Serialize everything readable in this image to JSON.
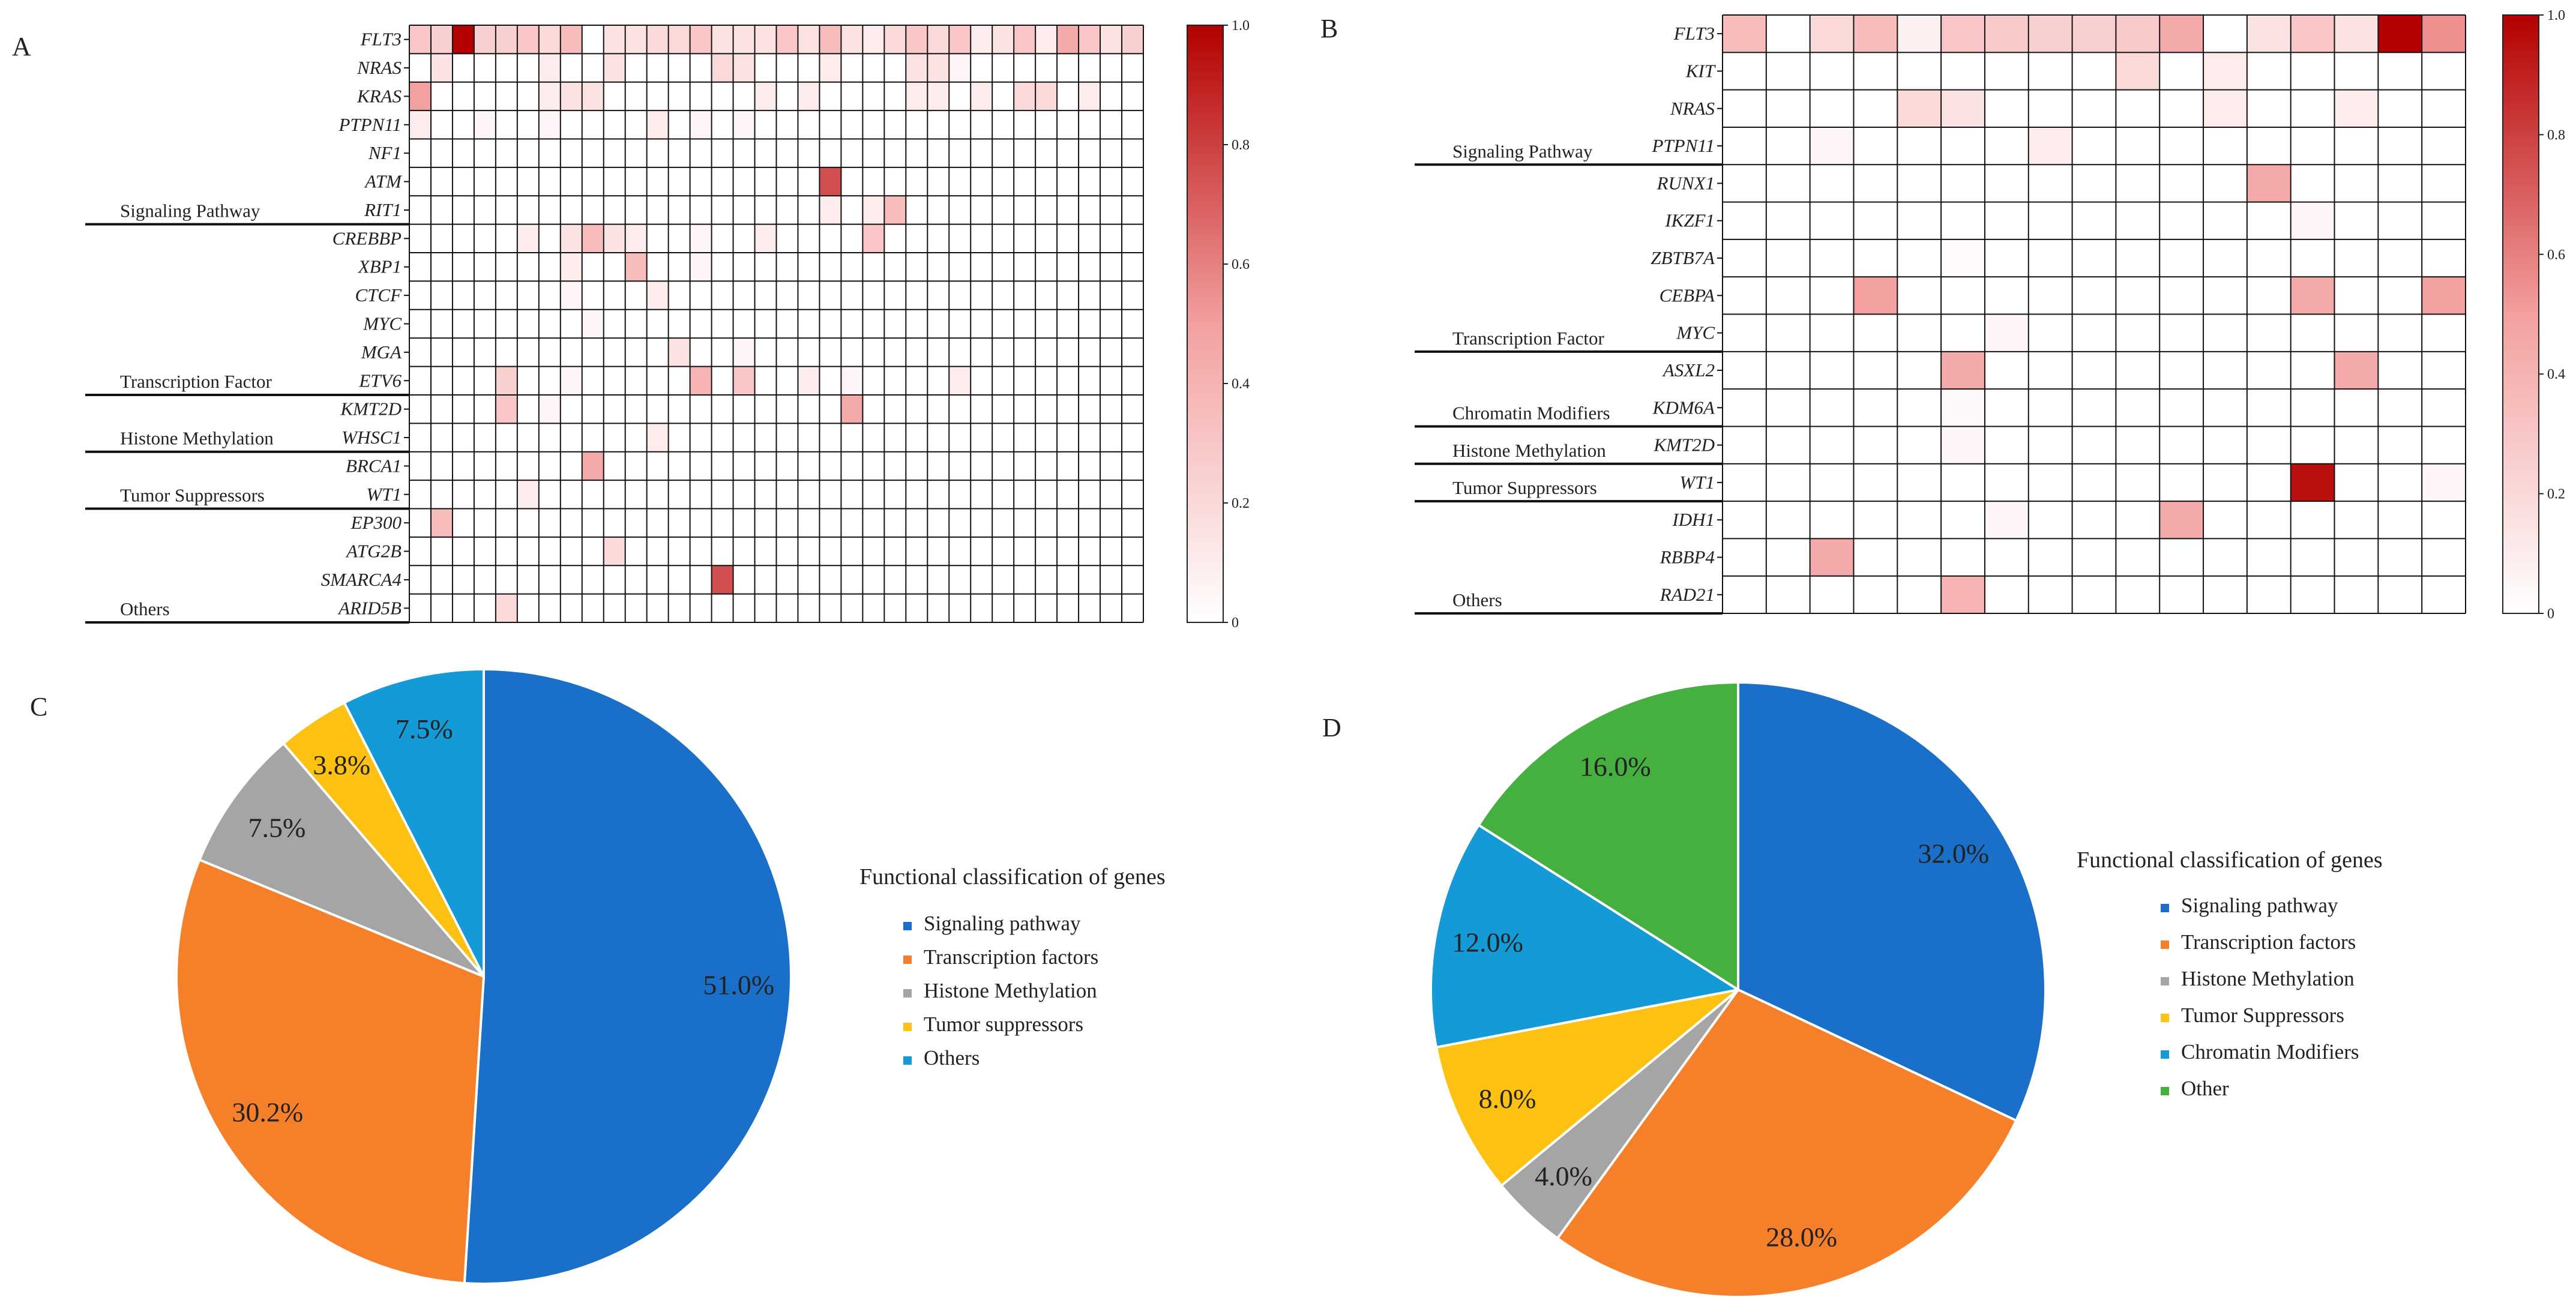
{
  "figure": {
    "panels": [
      "A",
      "B",
      "C",
      "D"
    ]
  },
  "chart_data": [
    {
      "panel": "A",
      "type": "heatmap",
      "title": "",
      "genes": [
        "FLT3",
        "NRAS",
        "KRAS",
        "PTPN11",
        "NF1",
        "ATM",
        "RIT1",
        "CREBBP",
        "XBP1",
        "CTCF",
        "MYC",
        "MGA",
        "ETV6",
        "KMT2D",
        "WHSC1",
        "BRCA1",
        "WT1",
        "EP300",
        "ATG2B",
        "SMARCA4",
        "ARID5B"
      ],
      "categories": [
        {
          "label": "Signaling Pathway",
          "last_gene_index": 6
        },
        {
          "label": "Transcription Factor",
          "last_gene_index": 12
        },
        {
          "label": "Histone Methylation",
          "last_gene_index": 14
        },
        {
          "label": "Tumor Suppressors",
          "last_gene_index": 16
        },
        {
          "label": "Others",
          "last_gene_index": 20
        }
      ],
      "n_samples": 34,
      "cells": [
        [
          0,
          0,
          0.3
        ],
        [
          0,
          1,
          0.25
        ],
        [
          0,
          2,
          1.0
        ],
        [
          0,
          3,
          0.25
        ],
        [
          0,
          4,
          0.25
        ],
        [
          0,
          5,
          0.3
        ],
        [
          0,
          6,
          0.2
        ],
        [
          0,
          7,
          0.35
        ],
        [
          0,
          9,
          0.15
        ],
        [
          0,
          10,
          0.15
        ],
        [
          0,
          11,
          0.2
        ],
        [
          0,
          12,
          0.2
        ],
        [
          0,
          13,
          0.3
        ],
        [
          0,
          14,
          0.15
        ],
        [
          0,
          15,
          0.15
        ],
        [
          0,
          16,
          0.15
        ],
        [
          0,
          17,
          0.3
        ],
        [
          0,
          18,
          0.15
        ],
        [
          0,
          19,
          0.35
        ],
        [
          0,
          20,
          0.15
        ],
        [
          0,
          21,
          0.1
        ],
        [
          0,
          22,
          0.2
        ],
        [
          0,
          23,
          0.3
        ],
        [
          0,
          24,
          0.2
        ],
        [
          0,
          25,
          0.3
        ],
        [
          0,
          26,
          0.1
        ],
        [
          0,
          27,
          0.15
        ],
        [
          0,
          28,
          0.3
        ],
        [
          0,
          29,
          0.1
        ],
        [
          0,
          30,
          0.45
        ],
        [
          0,
          31,
          0.3
        ],
        [
          0,
          32,
          0.15
        ],
        [
          0,
          33,
          0.25
        ],
        [
          1,
          1,
          0.15
        ],
        [
          1,
          6,
          0.1
        ],
        [
          1,
          9,
          0.15
        ],
        [
          1,
          14,
          0.2
        ],
        [
          1,
          15,
          0.15
        ],
        [
          1,
          19,
          0.1
        ],
        [
          1,
          23,
          0.15
        ],
        [
          1,
          24,
          0.15
        ],
        [
          1,
          25,
          0.05
        ],
        [
          2,
          0,
          0.5
        ],
        [
          2,
          6,
          0.1
        ],
        [
          2,
          7,
          0.15
        ],
        [
          2,
          8,
          0.15
        ],
        [
          2,
          16,
          0.1
        ],
        [
          2,
          18,
          0.1
        ],
        [
          2,
          23,
          0.1
        ],
        [
          2,
          24,
          0.1
        ],
        [
          2,
          26,
          0.1
        ],
        [
          2,
          28,
          0.2
        ],
        [
          2,
          29,
          0.2
        ],
        [
          2,
          31,
          0.1
        ],
        [
          3,
          0,
          0.1
        ],
        [
          3,
          3,
          0.05
        ],
        [
          3,
          6,
          0.05
        ],
        [
          3,
          11,
          0.1
        ],
        [
          3,
          13,
          0.05
        ],
        [
          3,
          15,
          0.05
        ],
        [
          5,
          19,
          0.75
        ],
        [
          6,
          19,
          0.1
        ],
        [
          6,
          21,
          0.1
        ],
        [
          6,
          22,
          0.35
        ],
        [
          7,
          5,
          0.1
        ],
        [
          7,
          7,
          0.15
        ],
        [
          7,
          8,
          0.35
        ],
        [
          7,
          9,
          0.15
        ],
        [
          7,
          10,
          0.1
        ],
        [
          7,
          13,
          0.05
        ],
        [
          7,
          16,
          0.1
        ],
        [
          7,
          21,
          0.3
        ],
        [
          8,
          7,
          0.1
        ],
        [
          8,
          10,
          0.35
        ],
        [
          8,
          13,
          0.05
        ],
        [
          9,
          7,
          0.05
        ],
        [
          9,
          11,
          0.1
        ],
        [
          10,
          8,
          0.05
        ],
        [
          11,
          12,
          0.15
        ],
        [
          11,
          15,
          0.05
        ],
        [
          12,
          4,
          0.25
        ],
        [
          12,
          7,
          0.05
        ],
        [
          12,
          13,
          0.4
        ],
        [
          12,
          15,
          0.3
        ],
        [
          12,
          18,
          0.1
        ],
        [
          12,
          20,
          0.05
        ],
        [
          12,
          25,
          0.1
        ],
        [
          13,
          4,
          0.3
        ],
        [
          13,
          6,
          0.05
        ],
        [
          13,
          20,
          0.45
        ],
        [
          14,
          11,
          0.1
        ],
        [
          15,
          8,
          0.45
        ],
        [
          16,
          5,
          0.1
        ],
        [
          17,
          1,
          0.35
        ],
        [
          18,
          9,
          0.2
        ],
        [
          19,
          14,
          0.75
        ],
        [
          20,
          4,
          0.2
        ]
      ],
      "colorbar": {
        "min": 0,
        "max": 1.0,
        "ticks": [
          "1.0",
          "0.8",
          "0.6",
          "0.4",
          "0.2",
          "0"
        ]
      }
    },
    {
      "panel": "B",
      "type": "heatmap",
      "title": "",
      "genes": [
        "FLT3",
        "KIT",
        "NRAS",
        "PTPN11",
        "RUNX1",
        "IKZF1",
        "ZBTB7A",
        "CEBPA",
        "MYC",
        "ASXL2",
        "KDM6A",
        "KMT2D",
        "WT1",
        "IDH1",
        "RBBP4",
        "RAD21"
      ],
      "categories": [
        {
          "label": "Signaling Pathway",
          "last_gene_index": 3
        },
        {
          "label": "Transcription Factor",
          "last_gene_index": 8
        },
        {
          "label": "Chromatin Modifiers",
          "last_gene_index": 10
        },
        {
          "label": "Histone Methylation",
          "last_gene_index": 11
        },
        {
          "label": "Tumor Suppressors",
          "last_gene_index": 12
        },
        {
          "label": "Others",
          "last_gene_index": 15
        }
      ],
      "n_samples": 17,
      "cells": [
        [
          0,
          0,
          0.35
        ],
        [
          0,
          2,
          0.2
        ],
        [
          0,
          3,
          0.35
        ],
        [
          0,
          4,
          0.08
        ],
        [
          0,
          5,
          0.3
        ],
        [
          0,
          6,
          0.28
        ],
        [
          0,
          7,
          0.25
        ],
        [
          0,
          8,
          0.25
        ],
        [
          0,
          9,
          0.28
        ],
        [
          0,
          10,
          0.45
        ],
        [
          0,
          12,
          0.15
        ],
        [
          0,
          13,
          0.3
        ],
        [
          0,
          14,
          0.15
        ],
        [
          0,
          15,
          1.0
        ],
        [
          0,
          16,
          0.55
        ],
        [
          1,
          9,
          0.2
        ],
        [
          1,
          11,
          0.1
        ],
        [
          2,
          4,
          0.2
        ],
        [
          2,
          5,
          0.15
        ],
        [
          2,
          11,
          0.1
        ],
        [
          2,
          14,
          0.1
        ],
        [
          3,
          2,
          0.05
        ],
        [
          3,
          7,
          0.1
        ],
        [
          4,
          12,
          0.45
        ],
        [
          5,
          13,
          0.05
        ],
        [
          6,
          5,
          0.02
        ],
        [
          7,
          3,
          0.5
        ],
        [
          7,
          13,
          0.45
        ],
        [
          7,
          16,
          0.5
        ],
        [
          8,
          6,
          0.05
        ],
        [
          9,
          5,
          0.45
        ],
        [
          9,
          14,
          0.45
        ],
        [
          10,
          5,
          0.03
        ],
        [
          11,
          5,
          0.05
        ],
        [
          12,
          13,
          0.95
        ],
        [
          12,
          16,
          0.05
        ],
        [
          13,
          6,
          0.05
        ],
        [
          13,
          10,
          0.45
        ],
        [
          14,
          2,
          0.45
        ],
        [
          15,
          5,
          0.4
        ]
      ],
      "colorbar": {
        "min": 0,
        "max": 1.0,
        "ticks": [
          "1.0",
          "0.8",
          "0.6",
          "0.4",
          "0.2",
          "0"
        ]
      }
    },
    {
      "panel": "C",
      "type": "pie",
      "title": "",
      "legend_title": "Functional classification  of genes",
      "slices": [
        {
          "name": "Signaling pathway",
          "value": 51.0,
          "label": "51.0%",
          "color": "#1a70c8"
        },
        {
          "name": "Transcription factors",
          "value": 30.2,
          "label": "30.2%",
          "color": "#f6802a"
        },
        {
          "name": "Histone Methylation",
          "value": 7.5,
          "label": "7.5%",
          "color": "#a5a5a5"
        },
        {
          "name": "Tumor suppressors",
          "value": 3.8,
          "label": "3.8%",
          "color": "#fcc111"
        },
        {
          "name": "Others",
          "value": 7.5,
          "label": "7.5%",
          "color": "#159ad8"
        }
      ]
    },
    {
      "panel": "D",
      "type": "pie",
      "title": "",
      "legend_title": "Functional classification  of genes",
      "slices": [
        {
          "name": "Signaling pathway",
          "value": 32.0,
          "label": "32.0%",
          "color": "#1a70c8"
        },
        {
          "name": "Transcription factors",
          "value": 28.0,
          "label": "28.0%",
          "color": "#f6802a"
        },
        {
          "name": "Histone Methylation",
          "value": 4.0,
          "label": "4.0%",
          "color": "#a5a5a5"
        },
        {
          "name": "Tumor Suppressors",
          "value": 8.0,
          "label": "8.0%",
          "color": "#fcc111"
        },
        {
          "name": "Chromatin Modifiers",
          "value": 12.0,
          "label": "12.0%",
          "color": "#159ad8"
        },
        {
          "name": "Other",
          "value": 16.0,
          "label": "16.0%",
          "color": "#45b03f"
        }
      ]
    }
  ]
}
